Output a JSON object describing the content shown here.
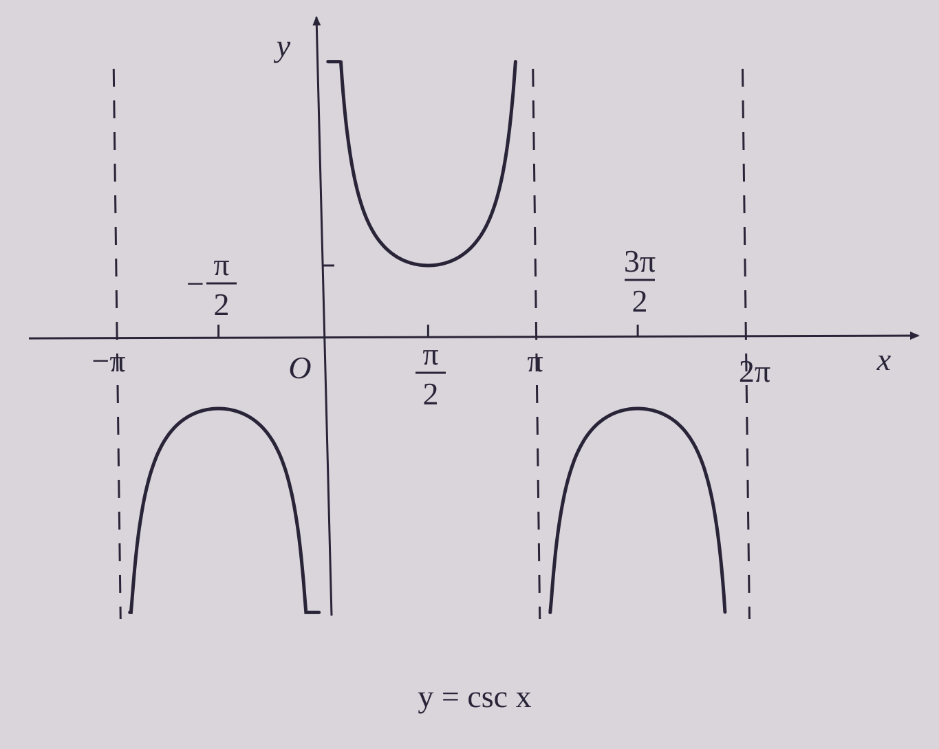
{
  "chart_data": {
    "type": "line",
    "title": "y = csc  x",
    "function": "csc",
    "xlabel": "x",
    "ylabel": "y",
    "origin_label": "O",
    "x_ticks": [
      {
        "value": -3.14159,
        "label": "−π"
      },
      {
        "value": -1.5708,
        "label": "−π/2"
      },
      {
        "value": 1.5708,
        "label": "π/2"
      },
      {
        "value": 3.14159,
        "label": "π"
      },
      {
        "value": 4.71239,
        "label": "3π/2"
      },
      {
        "value": 6.28319,
        "label": "2π"
      }
    ],
    "y_ticks": [
      1
    ],
    "asymptotes_x": [
      -3.14159,
      3.14159,
      6.28319
    ],
    "xlim": [
      -3.95,
      8.6
    ],
    "ylim": [
      -3.6,
      3.7
    ],
    "branches": [
      {
        "x_start": -2.9,
        "x_end": -0.065,
        "samples": [
          [
            -2.9,
            -4.2
          ],
          [
            -2.5,
            -1.67
          ],
          [
            -2.0,
            -1.1
          ],
          [
            -1.5708,
            -1.0
          ],
          [
            -1.0,
            -1.19
          ],
          [
            -0.5,
            -2.09
          ],
          [
            -0.25,
            -4.0
          ]
        ]
      },
      {
        "x_start": 0.07,
        "x_end": 2.88,
        "samples": [
          [
            0.25,
            4.0
          ],
          [
            0.5,
            2.09
          ],
          [
            1.0,
            1.19
          ],
          [
            1.5708,
            1.0
          ],
          [
            2.0,
            1.1
          ],
          [
            2.5,
            1.67
          ],
          [
            2.88,
            3.9
          ]
        ]
      },
      {
        "x_start": 3.4,
        "x_end": 6.02,
        "samples": [
          [
            3.4,
            -3.9
          ],
          [
            3.8,
            -1.63
          ],
          [
            4.2,
            -1.15
          ],
          [
            4.71239,
            -1.0
          ],
          [
            5.2,
            -1.13
          ],
          [
            5.6,
            -1.58
          ],
          [
            6.02,
            -3.8
          ]
        ]
      }
    ],
    "grid": false
  }
}
